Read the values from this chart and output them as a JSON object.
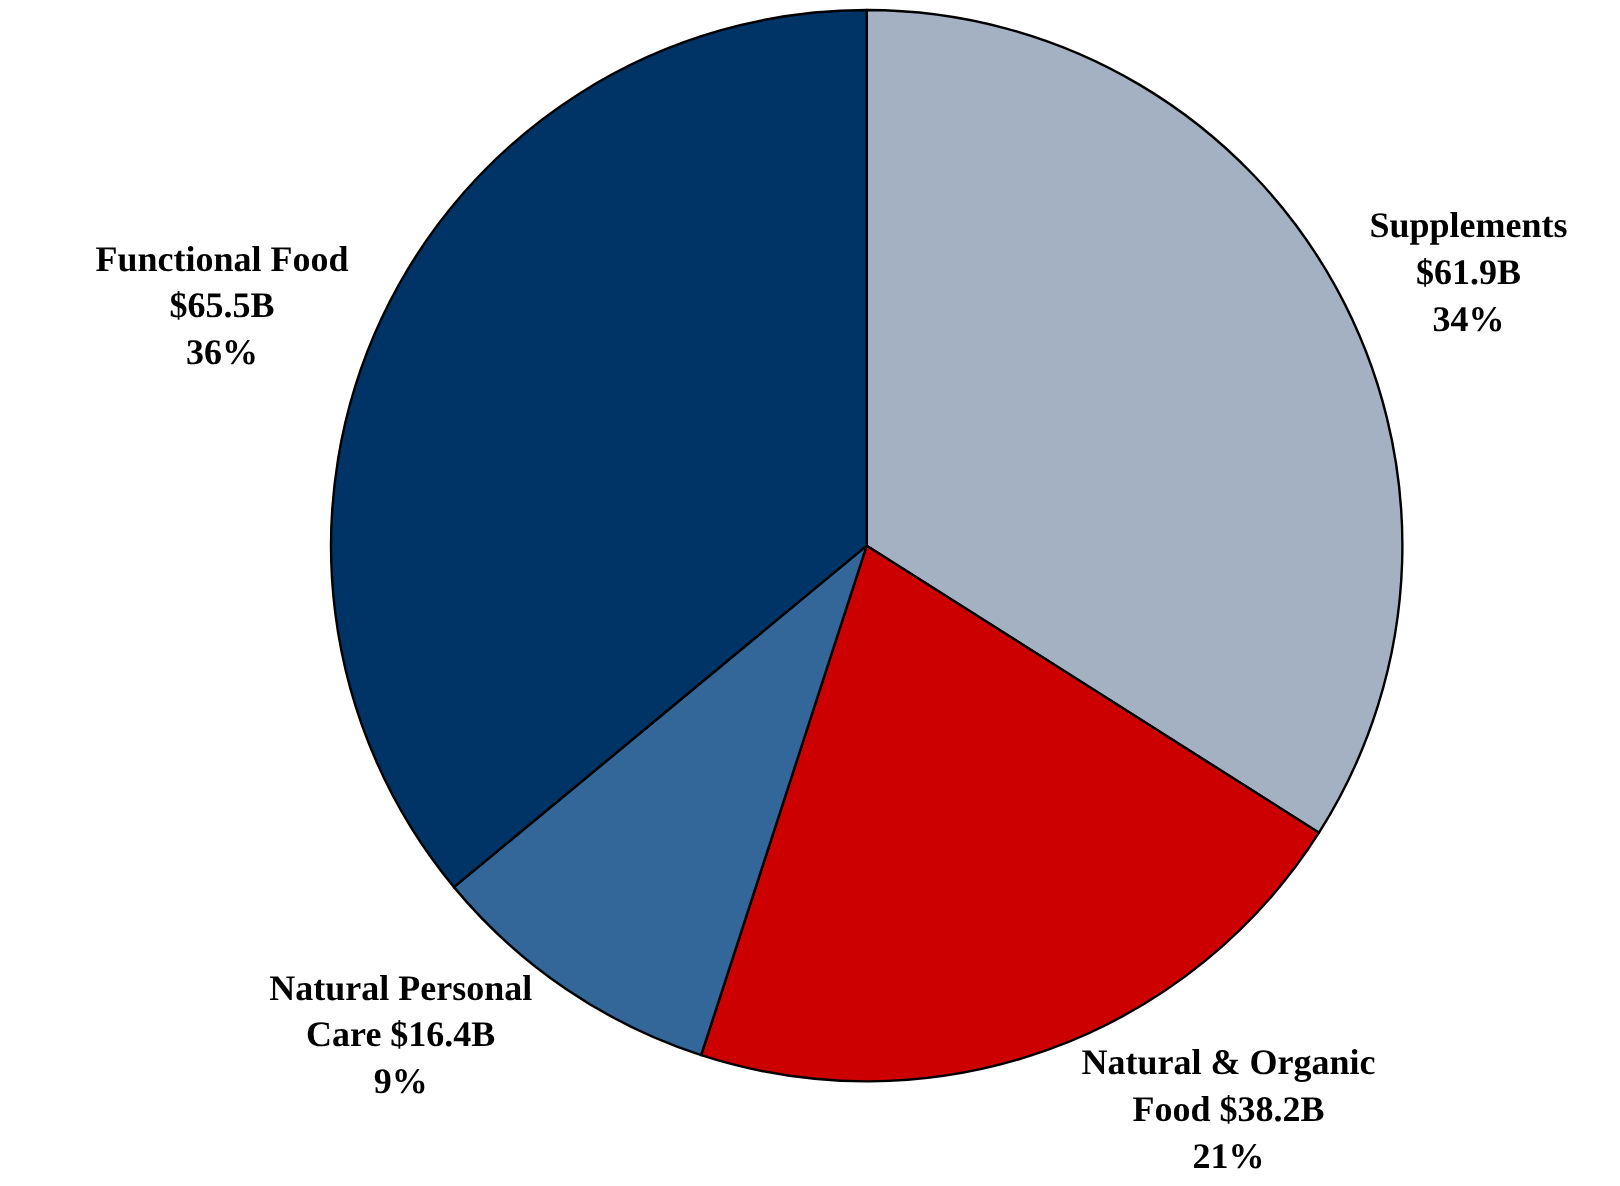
{
  "chart_data": {
    "type": "pie",
    "categories": [
      "Supplements $61.9B",
      "Natural & Organic Food $38.2B",
      "Natural Personal Care $16.4B",
      "Functional Food $65.5B"
    ],
    "values": [
      34,
      21,
      9,
      36
    ],
    "value_labels": [
      "34%",
      "21%",
      "9%",
      "36%"
    ],
    "colors": [
      "#a3b1c3",
      "#cc0000",
      "#336699",
      "#003366"
    ]
  }
}
